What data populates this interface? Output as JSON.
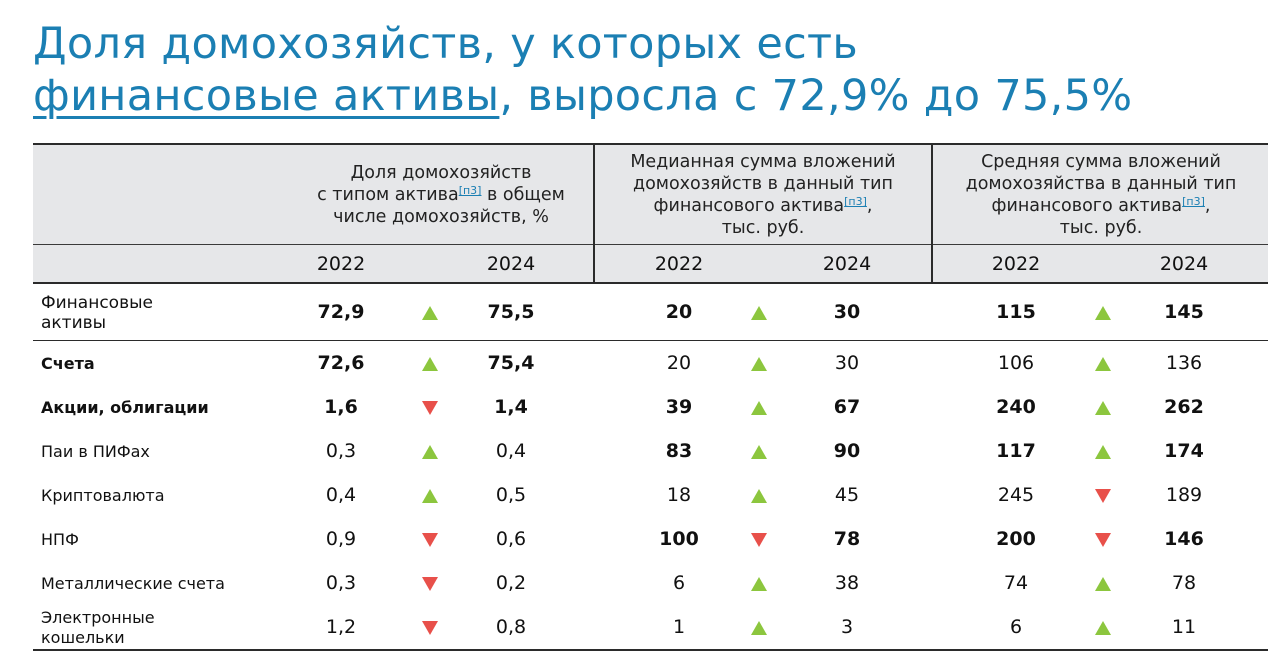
{
  "title": {
    "line1": "Доля домохозяйств, у которых есть",
    "line2_underlined": "финансовые активы",
    "line2_rest": ", выросла с 72,9% до 75,5%"
  },
  "headers": {
    "group1": {
      "line1": "Доля домохозяйств",
      "line2_pre": "с типом актива",
      "footnote": "[п3]",
      "line2_post": " в общем",
      "line3": "числе домохозяйств, %"
    },
    "group2": {
      "line1": "Медианная сумма вложений",
      "line2": "домохозяйств  в данный тип",
      "line3_pre": "финансового актива",
      "footnote": "[п3]",
      "line3_post": ",",
      "line4": "тыс. руб."
    },
    "group3": {
      "line1": "Средняя сумма вложений",
      "line2": "домохозяйства в данный тип",
      "line3_pre": "финансового актива",
      "footnote": "[п3]",
      "line3_post": ",",
      "line4": "тыс. руб."
    },
    "years": [
      "2022",
      "2024",
      "2022",
      "2024",
      "2022",
      "2024"
    ]
  },
  "colors": {
    "title": "#1b7fb3",
    "header_bg": "#e6e7e9",
    "arrow_up": "#8cc63e",
    "arrow_down": "#e8504a"
  },
  "rows": [
    {
      "label": "Финансовые активы",
      "label_style": "big",
      "share": {
        "v2022": "72,9",
        "v2024": "75,5",
        "trend": "up",
        "bold": true
      },
      "median": {
        "v2022": "20",
        "v2024": "30",
        "trend": "up",
        "bold": true
      },
      "mean": {
        "v2022": "115",
        "v2024": "145",
        "trend": "up",
        "bold": true
      }
    },
    {
      "label": "Счета",
      "label_style": "bold",
      "share": {
        "v2022": "72,6",
        "v2024": "75,4",
        "trend": "up",
        "bold": true
      },
      "median": {
        "v2022": "20",
        "v2024": "30",
        "trend": "up",
        "bold": false
      },
      "mean": {
        "v2022": "106",
        "v2024": "136",
        "trend": "up",
        "bold": false
      }
    },
    {
      "label": "Акции, облигации",
      "label_style": "bold",
      "share": {
        "v2022": "1,6",
        "v2024": "1,4",
        "trend": "down",
        "bold": true
      },
      "median": {
        "v2022": "39",
        "v2024": "67",
        "trend": "up",
        "bold": true
      },
      "mean": {
        "v2022": "240",
        "v2024": "262",
        "trend": "up",
        "bold": true
      }
    },
    {
      "label": "Паи в ПИФах",
      "label_style": "normal",
      "share": {
        "v2022": "0,3",
        "v2024": "0,4",
        "trend": "up",
        "bold": false
      },
      "median": {
        "v2022": "83",
        "v2024": "90",
        "trend": "up",
        "bold": true
      },
      "mean": {
        "v2022": "117",
        "v2024": "174",
        "trend": "up",
        "bold": true
      }
    },
    {
      "label": "Криптовалюта",
      "label_style": "normal",
      "share": {
        "v2022": "0,4",
        "v2024": "0,5",
        "trend": "up",
        "bold": false
      },
      "median": {
        "v2022": "18",
        "v2024": "45",
        "trend": "up",
        "bold": false
      },
      "mean": {
        "v2022": "245",
        "v2024": "189",
        "trend": "down",
        "bold": false
      }
    },
    {
      "label": "НПФ",
      "label_style": "normal",
      "share": {
        "v2022": "0,9",
        "v2024": "0,6",
        "trend": "down",
        "bold": false
      },
      "median": {
        "v2022": "100",
        "v2024": "78",
        "trend": "down",
        "bold": true
      },
      "mean": {
        "v2022": "200",
        "v2024": "146",
        "trend": "down",
        "bold": true
      }
    },
    {
      "label": "Металлические счета",
      "label_style": "normal",
      "share": {
        "v2022": "0,3",
        "v2024": "0,2",
        "trend": "down",
        "bold": false
      },
      "median": {
        "v2022": "6",
        "v2024": "38",
        "trend": "up",
        "bold": false
      },
      "mean": {
        "v2022": "74",
        "v2024": "78",
        "trend": "up",
        "bold": false
      }
    },
    {
      "label": "Электронные кошельки",
      "label_style": "normal",
      "share": {
        "v2022": "1,2",
        "v2024": "0,8",
        "trend": "down",
        "bold": false
      },
      "median": {
        "v2022": "1",
        "v2024": "3",
        "trend": "up",
        "bold": false
      },
      "mean": {
        "v2022": "6",
        "v2024": "11",
        "trend": "up",
        "bold": false
      }
    }
  ]
}
